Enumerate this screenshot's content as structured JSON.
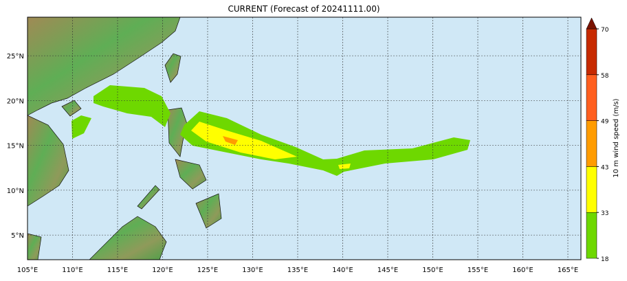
{
  "title": "CURRENT (Forecast of 20241111.00)",
  "map": {
    "xlim": [
      105,
      166.45
    ],
    "ylim": [
      2.25,
      29.3
    ],
    "xticks": [
      {
        "value": 105,
        "label": "105°E"
      },
      {
        "value": 110,
        "label": "110°E"
      },
      {
        "value": 115,
        "label": "115°E"
      },
      {
        "value": 120,
        "label": "120°E"
      },
      {
        "value": 125,
        "label": "125°E"
      },
      {
        "value": 130,
        "label": "130°E"
      },
      {
        "value": 135,
        "label": "135°E"
      },
      {
        "value": 140,
        "label": "140°E"
      },
      {
        "value": 145,
        "label": "145°E"
      },
      {
        "value": 150,
        "label": "150°E"
      },
      {
        "value": 155,
        "label": "155°E"
      },
      {
        "value": 160,
        "label": "160°E"
      },
      {
        "value": 165,
        "label": "165°E"
      }
    ],
    "yticks": [
      {
        "value": 5,
        "label": "5°N"
      },
      {
        "value": 10,
        "label": "10°N"
      },
      {
        "value": 15,
        "label": "15°N"
      },
      {
        "value": 20,
        "label": "20°N"
      },
      {
        "value": 25,
        "label": "25°N"
      }
    ],
    "grid": true
  },
  "colorbar": {
    "label": "10 m wind speed (m/s)",
    "levels": [
      18,
      33,
      43,
      49,
      58,
      70
    ],
    "colors": [
      "#6ed800",
      "#ffff00",
      "#ff9c00",
      "#ff5f1f",
      "#c72a00",
      "#7a1200"
    ]
  }
}
